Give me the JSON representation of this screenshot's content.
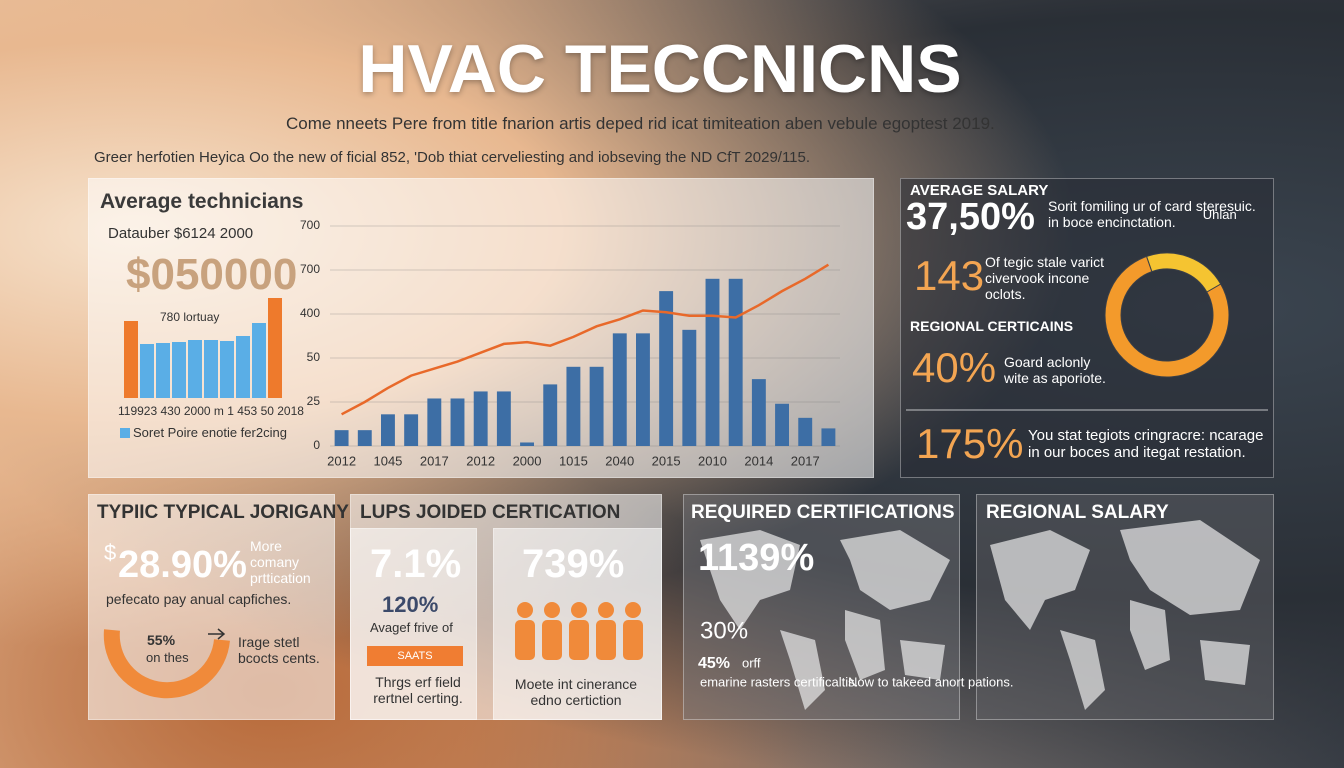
{
  "header": {
    "title": "HVAC TECCNICNS",
    "subtitle": "Come nneets Pere from title fnarion artis deped rid icat timiteation aben vebule egoptest 2019.",
    "note": "Greer herfotien Heyica Oo the new of ficial 852, 'Dob thiat cerveliesting and iobseving the ND CfT 2029/115."
  },
  "chart_data": [
    {
      "type": "bar",
      "title": "Average technicians",
      "subtitle": "Datauber $6124 2000",
      "annotation": "$050000",
      "note": "780 lortuay",
      "x_label": "119923 430 2000 m 1 453 50 2018",
      "series": [
        {
          "name": "Soret Poire enotie fer2cing",
          "color": "#5aaee6",
          "values": [
            77,
            54,
            55,
            56,
            58,
            58,
            57,
            62,
            75,
            100
          ]
        }
      ],
      "colors": [
        "#ee7a2c",
        "#5aaee6",
        "#5aaee6",
        "#5aaee6",
        "#5aaee6",
        "#5aaee6",
        "#5aaee6",
        "#5aaee6",
        "#5aaee6",
        "#ee7a2c"
      ]
    },
    {
      "type": "bar-line",
      "categories": [
        "2012",
        null,
        "1045",
        null,
        "2017",
        null,
        "2012",
        null,
        "2000",
        null,
        "1015",
        null,
        "2040",
        null,
        "2015",
        null,
        "2010",
        null,
        "2014",
        null,
        "2017",
        null
      ],
      "series": [
        {
          "type": "bar",
          "color": "#3d6ea5",
          "values": [
            9,
            9,
            18,
            18,
            27,
            27,
            31,
            31,
            2,
            35,
            45,
            45,
            64,
            64,
            88,
            66,
            95,
            95,
            38,
            24,
            16,
            10
          ]
        },
        {
          "type": "line",
          "color": "#e8692a",
          "values": [
            18,
            25,
            33,
            40,
            44,
            48,
            53,
            58,
            59,
            57,
            62,
            68,
            72,
            77,
            76,
            74,
            74,
            73,
            80,
            88,
            95,
            103
          ]
        }
      ],
      "ylim": [
        0,
        125
      ],
      "yticks": [
        0,
        25,
        50,
        {
          "value": 75,
          "label": "400"
        },
        {
          "value": 100,
          "label": "700"
        },
        {
          "value": 125,
          "label": "700"
        }
      ],
      "grid": true
    },
    {
      "type": "pie",
      "categories": [
        null,
        "Uhlan"
      ],
      "values": [
        78,
        22
      ],
      "colors": [
        "#f39a2b",
        "#f5c431"
      ]
    }
  ],
  "stats": {
    "heading": "AVERAGE SALARY",
    "value1": "37,50%",
    "text1": "Sorit fomiling ur of card steresuic. in boce encinctation.",
    "value2": "143",
    "text2": "Of tegic stale varict civervook incone oclots.",
    "heading2": "REGIONAL CERTICAINS",
    "value3": "40%",
    "text3": "Goard aclonly wite as aporiote.",
    "value4": "175%",
    "text4": "You stat tegiots cringracre: ncarage in our boces and itegat restation."
  },
  "panels": [
    {
      "title": "TYPIIC TYPICAL JORIGANY",
      "currency": "$",
      "value": "28.90%",
      "side": "More comany prttication",
      "text": "pefecato pay anual capfiches.",
      "gauge": "55%",
      "gauge_text": "on thes",
      "note": "Irage stetl bcocts cents."
    },
    {
      "title": "LUPS JOIDED CERTICATION",
      "value": "7.1%",
      "value2": "120%",
      "text": "Avagef frive of",
      "badge": "SAATS",
      "note": "Thrgs erf field rertnel certing.",
      "value3": "739%",
      "note2": "Moete int cinerance edno certiction"
    },
    {
      "title": "REQUIRED CERTIFICATIONS",
      "value": "1139%",
      "value2": "30%",
      "value3": "45%",
      "suffix": "orff",
      "text": "emarine rasters certificaltis.",
      "note": "Now to takeed anort pations."
    },
    {
      "title": "REGIONAL SALARY"
    }
  ]
}
